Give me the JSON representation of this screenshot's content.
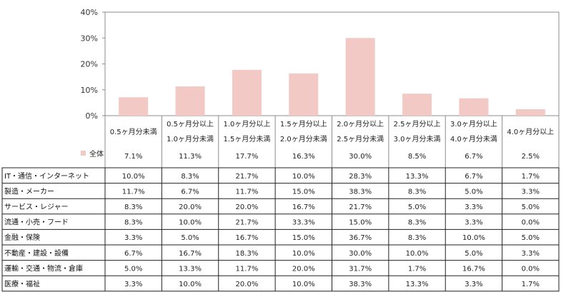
{
  "chart_data": {
    "type": "bar",
    "ylim": [
      0,
      40
    ],
    "y_ticks": [
      "0%",
      "10%",
      "20%",
      "30%",
      "40%"
    ],
    "categories": [
      [
        "0.5ヶ月分未満"
      ],
      [
        "0.5ヶ月分以上",
        "1.0ヶ月分未満"
      ],
      [
        "1.0ヶ月分以上",
        "1.5ヶ月分未満"
      ],
      [
        "1.5ヶ月分以上",
        "2.0ヶ月分未満"
      ],
      [
        "2.0ヶ月分以上",
        "2.5ヶ月分未満"
      ],
      [
        "2.5ヶ月分以上",
        "3.0ヶ月分未満"
      ],
      [
        "3.0ヶ月分以上",
        "4.0ヶ月分未満"
      ],
      [
        "4.0ヶ月分以上"
      ]
    ],
    "series": [
      {
        "name": "全体",
        "color": "#f2c9c4",
        "values": [
          7.1,
          11.3,
          17.7,
          16.3,
          30.0,
          8.5,
          6.7,
          2.5
        ],
        "labels": [
          "7.1%",
          "11.3%",
          "17.7%",
          "16.3%",
          "30.0%",
          "8.5%",
          "6.7%",
          "2.5%"
        ]
      }
    ],
    "table": {
      "rows": [
        {
          "label": "IT・通信・インターネット",
          "values": [
            "10.0%",
            "8.3%",
            "21.7%",
            "10.0%",
            "28.3%",
            "13.3%",
            "6.7%",
            "1.7%"
          ]
        },
        {
          "label": "製造・メーカー",
          "values": [
            "11.7%",
            "6.7%",
            "11.7%",
            "15.0%",
            "38.3%",
            "8.3%",
            "5.0%",
            "3.3%"
          ]
        },
        {
          "label": "サービス・レジャー",
          "values": [
            "8.3%",
            "20.0%",
            "20.0%",
            "16.7%",
            "21.7%",
            "5.0%",
            "3.3%",
            "5.0%"
          ]
        },
        {
          "label": "流通・小売・フード",
          "values": [
            "8.3%",
            "10.0%",
            "21.7%",
            "33.3%",
            "15.0%",
            "8.3%",
            "3.3%",
            "0.0%"
          ]
        },
        {
          "label": "金融・保険",
          "values": [
            "3.3%",
            "5.0%",
            "16.7%",
            "15.0%",
            "36.7%",
            "8.3%",
            "10.0%",
            "5.0%"
          ]
        },
        {
          "label": "不動産・建設・設備",
          "values": [
            "6.7%",
            "16.7%",
            "18.3%",
            "10.0%",
            "30.0%",
            "10.0%",
            "5.0%",
            "3.3%"
          ]
        },
        {
          "label": "運輸・交通・物流・倉庫",
          "values": [
            "5.0%",
            "13.3%",
            "11.7%",
            "20.0%",
            "31.7%",
            "1.7%",
            "16.7%",
            "0.0%"
          ]
        },
        {
          "label": "医療・福祉",
          "values": [
            "3.3%",
            "10.0%",
            "20.0%",
            "10.0%",
            "38.3%",
            "13.3%",
            "3.3%",
            "1.7%"
          ]
        }
      ]
    }
  }
}
